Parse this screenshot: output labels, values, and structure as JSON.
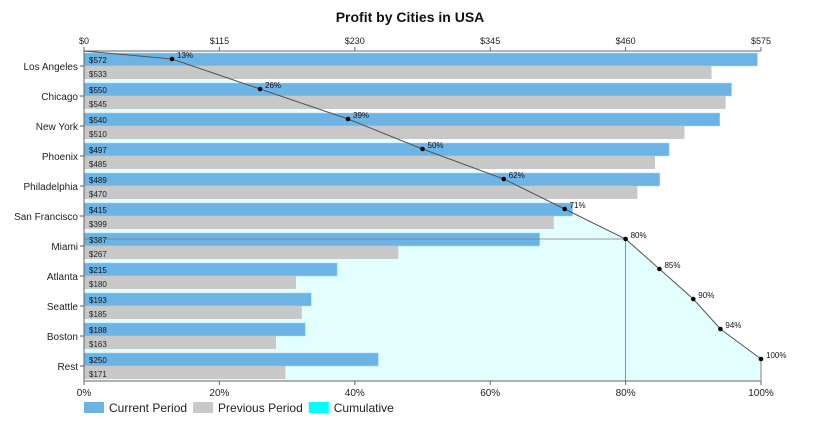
{
  "chart_data": {
    "type": "bar",
    "title": "Profit by Cities in USA",
    "categories": [
      "Los Angeles",
      "Chicago",
      "New York",
      "Phoenix",
      "Philadelphia",
      "San Francisco",
      "Miami",
      "Atlanta",
      "Seattle",
      "Boston",
      "Rest"
    ],
    "series": [
      {
        "name": "Current Period",
        "color": "#6cb4e6",
        "values": [
          572,
          550,
          540,
          497,
          489,
          415,
          387,
          215,
          193,
          188,
          250
        ],
        "labels": [
          "$572",
          "$550",
          "$540",
          "$497",
          "$489",
          "$415",
          "$387",
          "$215",
          "$193",
          "$188",
          "$250"
        ]
      },
      {
        "name": "Previous Period",
        "color": "#c8c8c8",
        "values": [
          533,
          545,
          510,
          485,
          470,
          399,
          267,
          180,
          185,
          163,
          171
        ],
        "labels": [
          "$533",
          "$545",
          "$510",
          "$485",
          "$470",
          "$399",
          "$267",
          "$180",
          "$185",
          "$163",
          "$171"
        ]
      },
      {
        "name": "Cumulative",
        "color": "#00ffff",
        "values": [
          13,
          26,
          39,
          50,
          62,
          71,
          80,
          85,
          90,
          94,
          100
        ],
        "labels": [
          "13%",
          "26%",
          "39%",
          "50%",
          "62%",
          "71%",
          "80%",
          "85%",
          "90%",
          "94%",
          "100%"
        ]
      }
    ],
    "top_axis": {
      "range": [
        0,
        575
      ],
      "ticks": [
        "$0",
        "$115",
        "$230",
        "$345",
        "$460",
        "$575"
      ],
      "tick_values": [
        0,
        115,
        230,
        345,
        460,
        575
      ]
    },
    "bottom_axis": {
      "range": [
        0,
        100
      ],
      "ticks": [
        "0%",
        "20%",
        "40%",
        "60%",
        "80%",
        "100%"
      ],
      "tick_values": [
        0,
        20,
        40,
        60,
        80,
        100
      ]
    },
    "threshold": 80,
    "legend": {
      "position": "bottom-left",
      "items": [
        "Current Period",
        "Previous Period",
        "Cumulative"
      ]
    }
  }
}
